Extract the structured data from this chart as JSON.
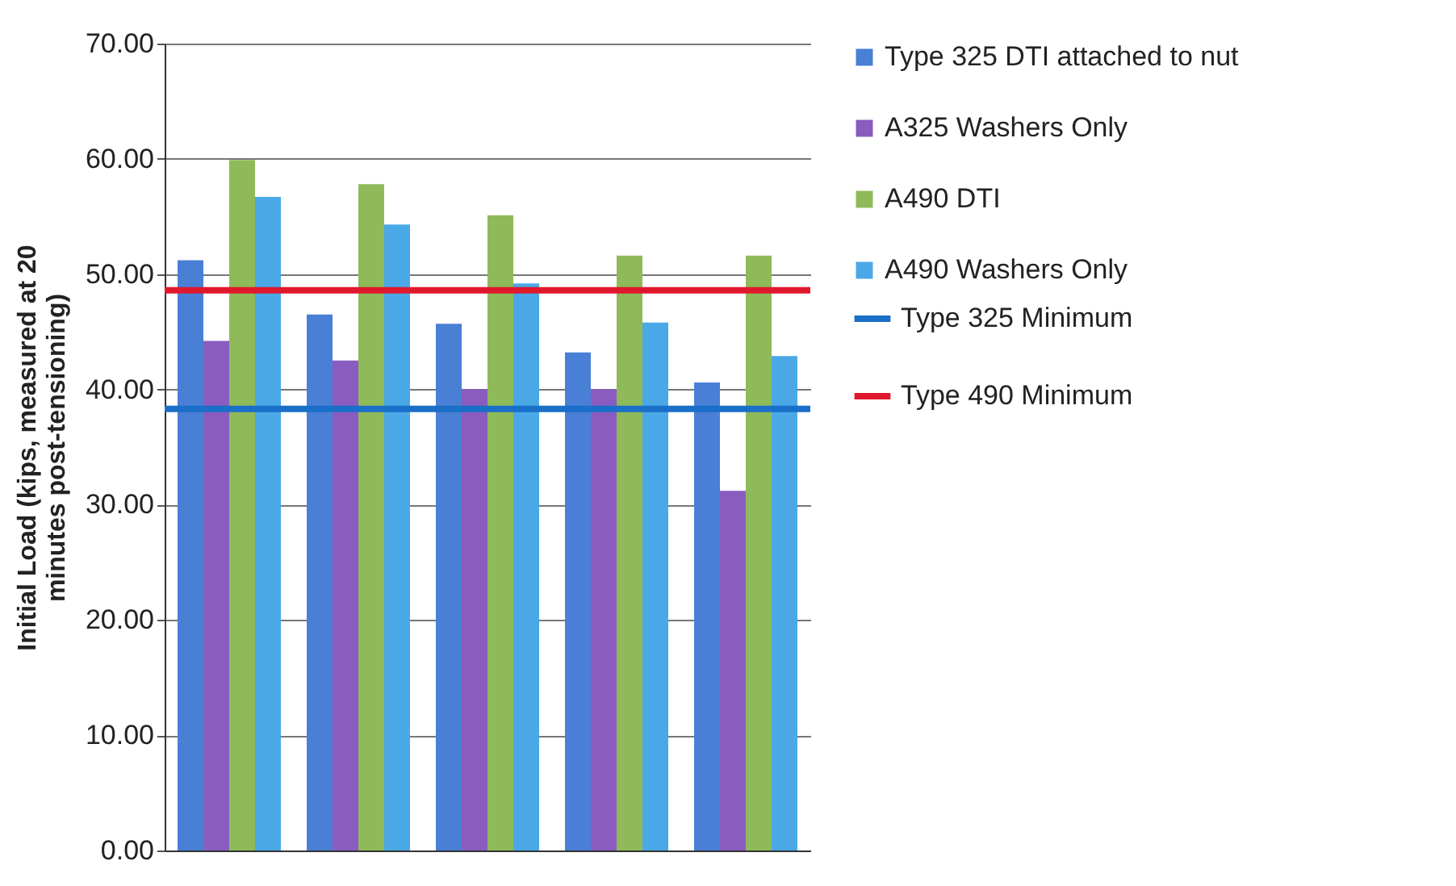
{
  "chart_data": {
    "type": "bar",
    "ylabel": "Initial Load (kips, measured at 20 minutes post-tensioning)",
    "categories": [
      null,
      null,
      null,
      null,
      null
    ],
    "series": [
      {
        "name": "Type 325 DTI attached to nut",
        "color": "#4a7fd6",
        "values": [
          51.2,
          46.5,
          45.7,
          43.2,
          40.6
        ]
      },
      {
        "name": "A325 Washers Only",
        "color": "#8a5cc0",
        "values": [
          44.2,
          42.5,
          40.0,
          40.0,
          31.2
        ]
      },
      {
        "name": "A490 DTI",
        "color": "#8fba5a",
        "values": [
          59.9,
          57.8,
          55.1,
          51.6,
          51.6
        ]
      },
      {
        "name": "A490 Washers Only",
        "color": "#4aa8e6",
        "values": [
          56.7,
          54.3,
          49.2,
          45.8,
          42.9
        ]
      }
    ],
    "ref_lines": [
      {
        "axis": "y",
        "value": 38.3,
        "label": "Type 325 Minimum",
        "color": "#1a6fc8"
      },
      {
        "axis": "y",
        "value": 48.6,
        "label": "Type 490 Minimum",
        "color": "#e0182d"
      }
    ],
    "ylim": [
      0,
      70
    ],
    "yticks": [
      {
        "value": 0,
        "label": "0.00"
      },
      {
        "value": 10,
        "label": "10.00"
      },
      {
        "value": 20,
        "label": "20.00"
      },
      {
        "value": 30,
        "label": "30.00"
      },
      {
        "value": 40,
        "label": "40.00"
      },
      {
        "value": 50,
        "label": "50.00"
      },
      {
        "value": 60,
        "label": "60.00"
      },
      {
        "value": 70,
        "label": "70.00"
      }
    ],
    "grid": "y",
    "legend": "right"
  }
}
